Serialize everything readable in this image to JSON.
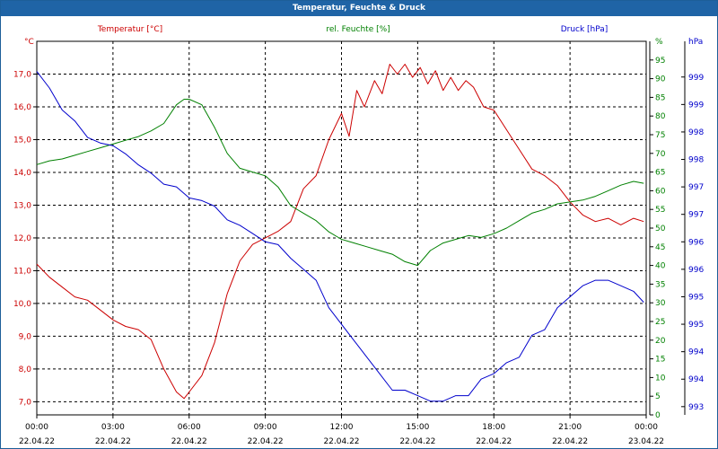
{
  "window": {
    "title": "Temperatur, Feuchte & Druck"
  },
  "chart_data": {
    "type": "line",
    "title": "Temperatur, Feuchte & Druck",
    "grid": true,
    "x_tick_times": [
      "00:00",
      "03:00",
      "06:00",
      "09:00",
      "12:00",
      "15:00",
      "18:00",
      "21:00",
      "00:00"
    ],
    "x_tick_dates": [
      "22.04.22",
      "22.04.22",
      "22.04.22",
      "22.04.22",
      "22.04.22",
      "22.04.22",
      "22.04.22",
      "22.04.22",
      "23.04.22"
    ],
    "xlim": [
      0,
      24
    ],
    "axes": {
      "temperature": {
        "title": "Temperatur [°C]",
        "unit": "°C",
        "ylim": [
          6.6,
          18.0
        ],
        "ticks": [
          "7,0",
          "8,0",
          "9,0",
          "10,0",
          "11,0",
          "12,0",
          "13,0",
          "14,0",
          "15,0",
          "16,0",
          "17,0"
        ],
        "tick_values": [
          7,
          8,
          9,
          10,
          11,
          12,
          13,
          14,
          15,
          16,
          17
        ],
        "color": "#cc0000"
      },
      "humidity": {
        "title": "rel. Feuchte [%]",
        "unit": "%",
        "ylim": [
          0,
          100
        ],
        "ticks": [
          "0",
          "5",
          "10",
          "15",
          "20",
          "25",
          "30",
          "35",
          "40",
          "45",
          "50",
          "55",
          "60",
          "65",
          "70",
          "75",
          "80",
          "85",
          "90",
          "95"
        ],
        "tick_values": [
          0,
          5,
          10,
          15,
          20,
          25,
          30,
          35,
          40,
          45,
          50,
          55,
          60,
          65,
          70,
          75,
          80,
          85,
          90,
          95
        ],
        "color": "#008000"
      },
      "pressure": {
        "title": "Druck [hPa]",
        "unit": "hPa",
        "ylim": [
          992.85,
          999.65
        ],
        "ticks": [
          "993",
          "994",
          "994",
          "995",
          "995",
          "996",
          "996",
          "997",
          "997",
          "998",
          "998",
          "999",
          "999"
        ],
        "tick_values": [
          993.0,
          993.5,
          994.0,
          994.5,
          995.0,
          995.5,
          996.0,
          996.5,
          997.0,
          997.5,
          998.0,
          998.5,
          999.0
        ],
        "color": "#0000cc"
      }
    },
    "series": [
      {
        "name": "Temperatur [°C]",
        "axis": "temperature",
        "color": "#cc0000",
        "x": [
          0,
          0.5,
          1,
          1.5,
          2,
          2.5,
          3,
          3.5,
          4,
          4.5,
          5,
          5.5,
          5.8,
          6,
          6.5,
          7,
          7.5,
          8,
          8.5,
          9,
          9.5,
          10,
          10.5,
          11,
          11.5,
          12,
          12.3,
          12.6,
          12.9,
          13.3,
          13.6,
          13.9,
          14.2,
          14.5,
          14.8,
          15.1,
          15.4,
          15.7,
          16,
          16.3,
          16.6,
          16.9,
          17.2,
          17.6,
          18,
          18.5,
          19,
          19.5,
          20,
          20.5,
          21,
          21.5,
          22,
          22.5,
          23,
          23.5,
          23.9
        ],
        "y": [
          11.2,
          10.8,
          10.5,
          10.2,
          10.1,
          9.8,
          9.5,
          9.3,
          9.2,
          8.9,
          8.0,
          7.3,
          7.1,
          7.3,
          7.8,
          8.8,
          10.3,
          11.3,
          11.8,
          12.0,
          12.2,
          12.5,
          13.5,
          13.9,
          15.0,
          15.8,
          15.1,
          16.5,
          16.0,
          16.8,
          16.4,
          17.3,
          17.0,
          17.3,
          16.9,
          17.2,
          16.7,
          17.1,
          16.5,
          16.9,
          16.5,
          16.8,
          16.6,
          16.0,
          15.9,
          15.3,
          14.7,
          14.1,
          13.9,
          13.6,
          13.1,
          12.7,
          12.5,
          12.6,
          12.4,
          12.6,
          12.5
        ]
      },
      {
        "name": "rel. Feuchte [%]",
        "axis": "humidity",
        "color": "#008000",
        "x": [
          0,
          0.5,
          1,
          1.5,
          2,
          2.5,
          3,
          3.5,
          4,
          4.5,
          5,
          5.5,
          5.8,
          6,
          6.5,
          7,
          7.5,
          8,
          8.5,
          9,
          9.5,
          10,
          10.5,
          11,
          11.5,
          12,
          12.5,
          13,
          13.5,
          14,
          14.5,
          15,
          15.5,
          16,
          16.5,
          17,
          17.5,
          18,
          18.5,
          19,
          19.5,
          20,
          20.5,
          21,
          21.5,
          22,
          22.5,
          23,
          23.5,
          23.9
        ],
        "y": [
          67,
          68,
          68.5,
          69.5,
          70.5,
          71.5,
          72.5,
          73.5,
          74.5,
          76,
          78,
          83,
          84.5,
          84.5,
          83,
          77,
          70,
          66,
          65,
          64,
          61,
          56,
          54,
          52,
          49,
          47,
          46,
          45,
          44,
          43,
          41,
          40,
          44,
          46,
          47,
          48,
          47.5,
          48.5,
          50,
          52,
          54,
          55,
          56.5,
          57,
          57.5,
          58.5,
          60,
          61.5,
          62.5,
          62
        ]
      },
      {
        "name": "Druck [hPa]",
        "axis": "pressure",
        "color": "#0000cc",
        "x": [
          0,
          0.5,
          1,
          1.5,
          2,
          2.5,
          3,
          3.5,
          4,
          4.5,
          5,
          5.5,
          6,
          6.5,
          7,
          7.5,
          8,
          8.5,
          9,
          9.5,
          10,
          10.5,
          11,
          11.5,
          12,
          12.5,
          13,
          13.5,
          14,
          14.5,
          15,
          15.5,
          16,
          16.5,
          17,
          17.5,
          18,
          18.5,
          19,
          19.5,
          20,
          20.5,
          21,
          21.5,
          22,
          22.5,
          23,
          23.5,
          23.9
        ],
        "y": [
          999.1,
          998.8,
          998.4,
          998.2,
          997.9,
          997.8,
          997.75,
          997.6,
          997.4,
          997.25,
          997.05,
          997.0,
          996.8,
          996.75,
          996.65,
          996.4,
          996.3,
          996.15,
          996.0,
          995.95,
          995.7,
          995.5,
          995.3,
          994.8,
          994.5,
          994.2,
          993.9,
          993.6,
          993.3,
          993.3,
          993.2,
          993.1,
          993.1,
          993.2,
          993.2,
          993.5,
          993.6,
          993.8,
          993.9,
          994.3,
          994.4,
          994.8,
          995.0,
          995.2,
          995.3,
          995.3,
          995.2,
          995.1,
          994.9
        ]
      }
    ]
  }
}
